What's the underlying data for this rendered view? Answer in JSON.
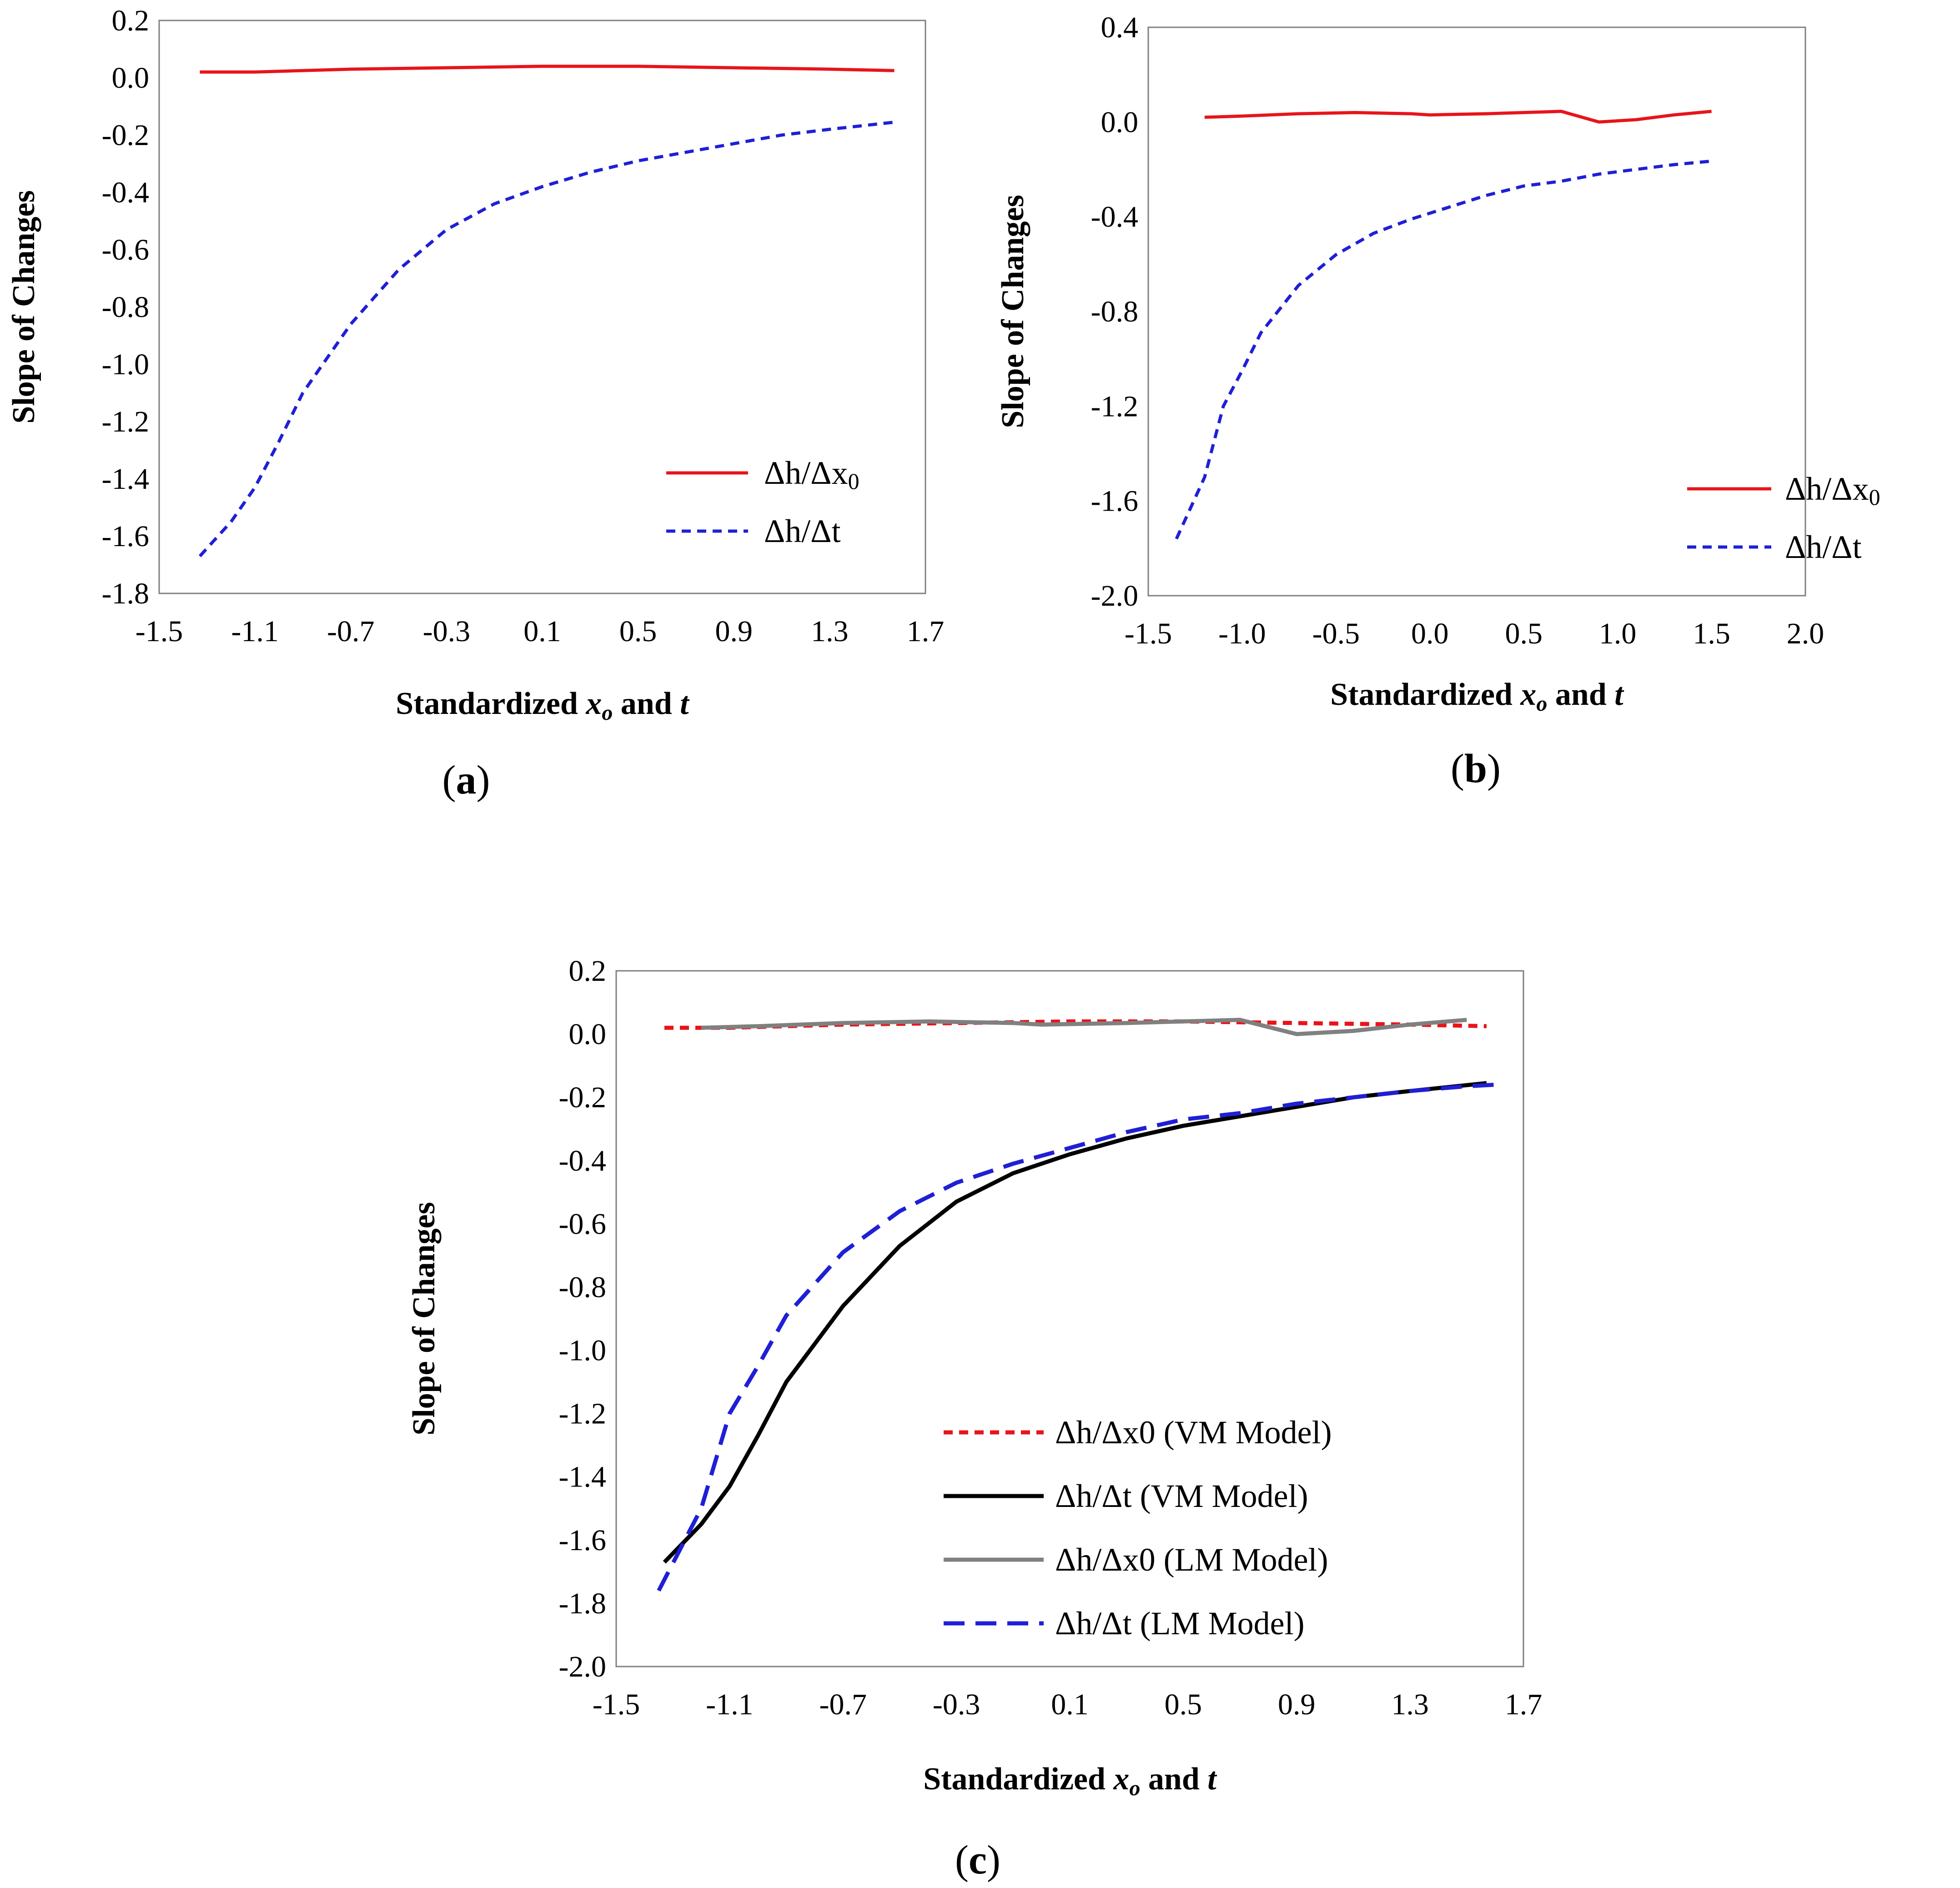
{
  "chart_data": [
    {
      "panel": "a",
      "type": "line",
      "label_open": "(",
      "label_letter": "a",
      "label_close": ")",
      "ylabel": "Slope of Changes",
      "xlabel": {
        "prefix": "Standardized ",
        "var": "x",
        "sub": "o",
        "mid": " and ",
        "var2": "t"
      },
      "xlim": [
        -1.5,
        1.7
      ],
      "ylim": [
        -1.8,
        0.2
      ],
      "xticks": [
        -1.5,
        -1.1,
        -0.7,
        -0.3,
        0.1,
        0.5,
        0.9,
        1.3,
        1.7
      ],
      "xtick_labels": [
        "-1.5",
        "-1.1",
        "-0.7",
        "-0.3",
        "0.1",
        "0.5",
        "0.9",
        "1.3",
        "1.7"
      ],
      "yticks": [
        0.2,
        0.0,
        -0.2,
        -0.4,
        -0.6,
        -0.8,
        -1.0,
        -1.2,
        -1.4,
        -1.6,
        -1.8
      ],
      "ytick_labels": [
        "0.2",
        "0.0",
        "-0.2",
        "-0.4",
        "-0.6",
        "-0.8",
        "-1.0",
        "-1.2",
        "-1.4",
        "-1.6",
        "-1.8"
      ],
      "legend_position": "bottom-right",
      "series": [
        {
          "name": "Δh/Δx0",
          "label_main": "Δh/Δx",
          "label_sub": "0",
          "color": "#e8141b",
          "dash": "solid",
          "x": [
            -1.33,
            -1.1,
            -0.7,
            -0.3,
            0.1,
            0.5,
            0.9,
            1.3,
            1.57
          ],
          "y": [
            0.02,
            0.02,
            0.03,
            0.035,
            0.04,
            0.04,
            0.035,
            0.03,
            0.025
          ]
        },
        {
          "name": "Δh/Δt",
          "label_main": "Δh/Δt",
          "label_sub": "",
          "color": "#1f1fd6",
          "dash": "short",
          "x": [
            -1.33,
            -1.2,
            -1.1,
            -1.0,
            -0.9,
            -0.7,
            -0.5,
            -0.3,
            -0.1,
            0.1,
            0.3,
            0.5,
            0.7,
            0.9,
            1.1,
            1.3,
            1.57
          ],
          "y": [
            -1.67,
            -1.55,
            -1.43,
            -1.27,
            -1.1,
            -0.86,
            -0.67,
            -0.53,
            -0.44,
            -0.38,
            -0.33,
            -0.29,
            -0.26,
            -0.23,
            -0.2,
            -0.18,
            -0.155
          ]
        }
      ]
    },
    {
      "panel": "b",
      "type": "line",
      "label_open": "(",
      "label_letter": "b",
      "label_close": ")",
      "ylabel": "Slope of Changes",
      "xlabel": {
        "prefix": "Standardized ",
        "var": "x",
        "sub": "o",
        "mid": " and ",
        "var2": "t"
      },
      "xlim": [
        -1.5,
        2.0
      ],
      "ylim": [
        -2.0,
        0.4
      ],
      "xticks": [
        -1.5,
        -1.0,
        -0.5,
        0.0,
        0.5,
        1.0,
        1.5,
        2.0
      ],
      "xtick_labels": [
        "-1.5",
        "-1.0",
        "-0.5",
        "0.0",
        "0.5",
        "1.0",
        "1.5",
        "2.0"
      ],
      "yticks": [
        0.4,
        0.0,
        -0.4,
        -0.8,
        -1.2,
        -1.6,
        -2.0
      ],
      "ytick_labels": [
        "0.4",
        "0.0",
        "-0.4",
        "-0.8",
        "-1.2",
        "-1.6",
        "-2.0"
      ],
      "legend_position": "bottom-right",
      "series": [
        {
          "name": "Δh/Δx0",
          "label_main": "Δh/Δx",
          "label_sub": "0",
          "color": "#e8141b",
          "dash": "solid",
          "x": [
            -1.2,
            -1.0,
            -0.7,
            -0.4,
            -0.1,
            0.0,
            0.3,
            0.5,
            0.7,
            0.9,
            1.1,
            1.3,
            1.5
          ],
          "y": [
            0.02,
            0.025,
            0.035,
            0.04,
            0.035,
            0.03,
            0.035,
            0.04,
            0.045,
            0.0,
            0.01,
            0.03,
            0.045
          ]
        },
        {
          "name": "Δh/Δt",
          "label_main": "Δh/Δt",
          "label_sub": "",
          "color": "#1f1fd6",
          "dash": "short",
          "x": [
            -1.35,
            -1.2,
            -1.1,
            -1.0,
            -0.9,
            -0.7,
            -0.5,
            -0.3,
            -0.1,
            0.1,
            0.3,
            0.5,
            0.7,
            0.9,
            1.1,
            1.3,
            1.5
          ],
          "y": [
            -1.76,
            -1.5,
            -1.2,
            -1.05,
            -0.89,
            -0.69,
            -0.56,
            -0.47,
            -0.41,
            -0.36,
            -0.31,
            -0.27,
            -0.25,
            -0.22,
            -0.2,
            -0.18,
            -0.165
          ]
        }
      ]
    },
    {
      "panel": "c",
      "type": "line",
      "label_open": "(",
      "label_letter": "c",
      "label_close": ")",
      "ylabel": "Slope of Changes",
      "xlabel": {
        "prefix": "Standardized ",
        "var": "x",
        "sub": "o",
        "mid": " and ",
        "var2": "t"
      },
      "xlim": [
        -1.5,
        1.7
      ],
      "ylim": [
        -2.0,
        0.2
      ],
      "xticks": [
        -1.5,
        -1.1,
        -0.7,
        -0.3,
        0.1,
        0.5,
        0.9,
        1.3,
        1.7
      ],
      "xtick_labels": [
        "-1.5",
        "-1.1",
        "-0.7",
        "-0.3",
        "0.1",
        "0.5",
        "0.9",
        "1.3",
        "1.7"
      ],
      "yticks": [
        0.2,
        0.0,
        -0.2,
        -0.4,
        -0.6,
        -0.8,
        -1.0,
        -1.2,
        -1.4,
        -1.6,
        -1.8,
        -2.0
      ],
      "ytick_labels": [
        "0.2",
        "0.0",
        "-0.2",
        "-0.4",
        "-0.6",
        "-0.8",
        "-1.0",
        "-1.2",
        "-1.4",
        "-1.6",
        "-1.8",
        "-2.0"
      ],
      "legend_position": "bottom-right",
      "series": [
        {
          "name": "Δh/Δx0 (VM Model)",
          "label_main": "Δh/Δx0 (VM Model)",
          "label_sub": "",
          "color": "#e8141b",
          "dash": "short",
          "x": [
            -1.33,
            -1.1,
            -0.7,
            -0.3,
            0.1,
            0.5,
            0.9,
            1.3,
            1.57
          ],
          "y": [
            0.02,
            0.02,
            0.03,
            0.035,
            0.04,
            0.04,
            0.035,
            0.03,
            0.025
          ]
        },
        {
          "name": "Δh/Δt (VM Model)",
          "label_main": "Δh/Δt (VM Model)",
          "label_sub": "",
          "color": "#000000",
          "dash": "solid",
          "x": [
            -1.33,
            -1.2,
            -1.1,
            -1.0,
            -0.9,
            -0.7,
            -0.5,
            -0.3,
            -0.1,
            0.1,
            0.3,
            0.5,
            0.7,
            0.9,
            1.1,
            1.3,
            1.57
          ],
          "y": [
            -1.67,
            -1.55,
            -1.43,
            -1.27,
            -1.1,
            -0.86,
            -0.67,
            -0.53,
            -0.44,
            -0.38,
            -0.33,
            -0.29,
            -0.26,
            -0.23,
            -0.2,
            -0.18,
            -0.155
          ]
        },
        {
          "name": "Δh/Δx0 (LM Model)",
          "label_main": "Δh/Δx0 (LM Model)",
          "label_sub": "",
          "color": "#808080",
          "dash": "solid",
          "x": [
            -1.2,
            -1.0,
            -0.7,
            -0.4,
            -0.1,
            0.0,
            0.3,
            0.5,
            0.7,
            0.9,
            1.1,
            1.3,
            1.5
          ],
          "y": [
            0.02,
            0.025,
            0.035,
            0.04,
            0.035,
            0.03,
            0.035,
            0.04,
            0.045,
            0.0,
            0.01,
            0.03,
            0.045
          ]
        },
        {
          "name": "Δh/Δt (LM Model)",
          "label_main": "Δh/Δt (LM Model)",
          "label_sub": "",
          "color": "#1f1fd6",
          "dash": "long",
          "x": [
            -1.35,
            -1.2,
            -1.1,
            -1.0,
            -0.9,
            -0.7,
            -0.5,
            -0.3,
            -0.1,
            0.1,
            0.3,
            0.5,
            0.7,
            0.9,
            1.1,
            1.3,
            1.5,
            1.6
          ],
          "y": [
            -1.76,
            -1.5,
            -1.2,
            -1.05,
            -0.89,
            -0.69,
            -0.56,
            -0.47,
            -0.41,
            -0.36,
            -0.31,
            -0.27,
            -0.25,
            -0.22,
            -0.2,
            -0.18,
            -0.165,
            -0.16
          ]
        }
      ]
    }
  ]
}
